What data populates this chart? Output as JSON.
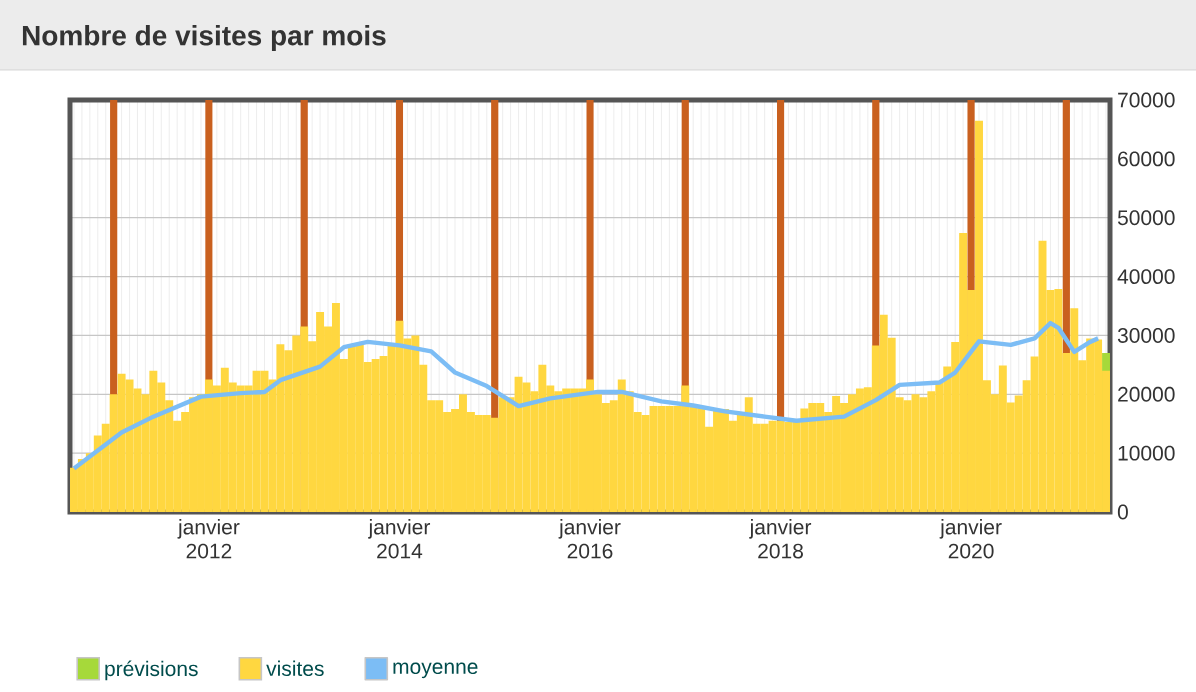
{
  "chart_data": {
    "type": "bar",
    "title": "Nombre de visites par mois",
    "x": [
      "2010-08",
      "2010-09",
      "2010-10",
      "2010-11",
      "2010-12",
      "2011-01",
      "2011-02",
      "2011-03",
      "2011-04",
      "2011-05",
      "2011-06",
      "2011-07",
      "2011-08",
      "2011-09",
      "2011-10",
      "2011-11",
      "2011-12",
      "2012-01",
      "2012-02",
      "2012-03",
      "2012-04",
      "2012-05",
      "2012-06",
      "2012-07",
      "2012-08",
      "2012-09",
      "2012-10",
      "2012-11",
      "2012-12",
      "2013-01",
      "2013-02",
      "2013-03",
      "2013-04",
      "2013-05",
      "2013-06",
      "2013-07",
      "2013-08",
      "2013-09",
      "2013-10",
      "2013-11",
      "2013-12",
      "2014-01",
      "2014-02",
      "2014-03",
      "2014-04",
      "2014-05",
      "2014-06",
      "2014-07",
      "2014-08",
      "2014-09",
      "2014-10",
      "2014-11",
      "2014-12",
      "2015-01",
      "2015-02",
      "2015-03",
      "2015-04",
      "2015-05",
      "2015-06",
      "2015-07",
      "2015-08",
      "2015-09",
      "2015-10",
      "2015-11",
      "2015-12",
      "2016-01",
      "2016-02",
      "2016-03",
      "2016-04",
      "2016-05",
      "2016-06",
      "2016-07",
      "2016-08",
      "2016-09",
      "2016-10",
      "2016-11",
      "2016-12",
      "2017-01",
      "2017-02",
      "2017-03",
      "2017-04",
      "2017-05",
      "2017-06",
      "2017-07",
      "2017-08",
      "2017-09",
      "2017-10",
      "2017-11",
      "2017-12",
      "2018-01",
      "2018-02",
      "2018-03",
      "2018-04",
      "2018-05",
      "2018-06",
      "2018-07",
      "2018-08",
      "2018-09",
      "2018-10",
      "2018-11",
      "2018-12",
      "2019-01",
      "2019-02",
      "2019-03",
      "2019-04",
      "2019-05",
      "2019-06",
      "2019-07",
      "2019-08",
      "2019-09",
      "2019-10",
      "2019-11",
      "2019-12",
      "2020-01",
      "2020-02",
      "2020-03",
      "2020-04",
      "2020-05",
      "2020-06",
      "2020-07",
      "2020-08",
      "2020-09",
      "2020-10",
      "2020-11",
      "2020-12",
      "2021-01",
      "2021-02",
      "2021-03",
      "2021-04",
      "2021-05",
      "2021-06"
    ],
    "series": [
      {
        "name": "prévisions",
        "color": "#a6d93a",
        "x": [
          "2021-06"
        ],
        "values": [
          27000
        ]
      },
      {
        "name": "visites",
        "color": "#ffd740",
        "values": [
          7500,
          9000,
          10000,
          13000,
          15000,
          20000,
          23500,
          22500,
          21000,
          20000,
          24000,
          22000,
          19000,
          15500,
          17000,
          19500,
          20000,
          22500,
          21500,
          24500,
          22000,
          21500,
          21500,
          24000,
          24000,
          22500,
          28500,
          27500,
          30000,
          31500,
          29000,
          34000,
          31500,
          35500,
          26000,
          28500,
          28500,
          25500,
          26000,
          26500,
          28500,
          32500,
          29500,
          30000,
          25000,
          19000,
          19000,
          17000,
          17500,
          20000,
          17000,
          16500,
          16500,
          16000,
          19500,
          19500,
          23000,
          22000,
          20500,
          25000,
          21500,
          20500,
          21000,
          21000,
          21000,
          22500,
          20000,
          18500,
          19000,
          22500,
          20500,
          17000,
          16500,
          18000,
          18000,
          18000,
          18000,
          21500,
          18000,
          18000,
          14500,
          17500,
          17500,
          15500,
          16500,
          19500,
          15000,
          15000,
          15500,
          15500,
          15300,
          15300,
          17600,
          18500,
          18500,
          17000,
          19700,
          18500,
          20000,
          21000,
          21200,
          28300,
          33500,
          29600,
          19500,
          19000,
          20000,
          19500,
          20500,
          22000,
          24700,
          28900,
          47400,
          37700,
          66500,
          22400,
          20000,
          24900,
          18600,
          19800,
          22400,
          26400,
          46100,
          37700,
          37900,
          27000,
          34600,
          25800,
          29500,
          29300,
          24000
        ]
      },
      {
        "name": "moyenne",
        "color": "#7cbdf5",
        "type": "line",
        "x": [
          "2010-08",
          "2011-02",
          "2011-06",
          "2011-12",
          "2012-05",
          "2012-08",
          "2012-10",
          "2013-03",
          "2013-06",
          "2013-09",
          "2014-01",
          "2014-05",
          "2014-08",
          "2014-12",
          "2015-04",
          "2015-08",
          "2016-02",
          "2016-05",
          "2016-10",
          "2017-02",
          "2017-06",
          "2017-11",
          "2018-03",
          "2018-09",
          "2019-01",
          "2019-04",
          "2019-09",
          "2019-11",
          "2020-02",
          "2020-06",
          "2020-09",
          "2020-11",
          "2020-12",
          "2021-02",
          "2021-04",
          "2021-05"
        ],
        "values": [
          7400,
          13500,
          16200,
          19600,
          20200,
          20400,
          22400,
          24700,
          28000,
          28900,
          28300,
          27300,
          23700,
          21400,
          18000,
          19300,
          20400,
          20400,
          18800,
          18100,
          17100,
          16200,
          15500,
          16200,
          19000,
          21600,
          22000,
          23700,
          29000,
          28400,
          29500,
          32100,
          31300,
          27200,
          28900,
          29500
        ]
      }
    ],
    "xlim": [
      "2010-07-16",
      "2021-06-16"
    ],
    "xticks": [
      {
        "value": "2012-01",
        "label": "janvier 2012"
      },
      {
        "value": "2014-01",
        "label": "janvier 2014"
      },
      {
        "value": "2016-01",
        "label": "janvier 2016"
      },
      {
        "value": "2018-01",
        "label": "janvier 2018"
      },
      {
        "value": "2020-01",
        "label": "janvier 2020"
      }
    ],
    "ylim": [
      0,
      70000
    ],
    "yticks": [
      0,
      10000,
      20000,
      30000,
      40000,
      50000,
      60000,
      70000
    ],
    "ref_lines": [
      {
        "axis": "x",
        "value": "2011-01",
        "color": "#c9601f"
      },
      {
        "axis": "x",
        "value": "2012-01",
        "color": "#c9601f"
      },
      {
        "axis": "x",
        "value": "2013-01",
        "color": "#c9601f"
      },
      {
        "axis": "x",
        "value": "2014-01",
        "color": "#c9601f"
      },
      {
        "axis": "x",
        "value": "2015-01",
        "color": "#c9601f"
      },
      {
        "axis": "x",
        "value": "2016-01",
        "color": "#c9601f"
      },
      {
        "axis": "x",
        "value": "2017-01",
        "color": "#c9601f"
      },
      {
        "axis": "x",
        "value": "2018-01",
        "color": "#c9601f"
      },
      {
        "axis": "x",
        "value": "2019-01",
        "color": "#c9601f"
      },
      {
        "axis": "x",
        "value": "2020-01",
        "color": "#c9601f"
      },
      {
        "axis": "x",
        "value": "2021-01",
        "color": "#c9601f"
      }
    ],
    "grid": true,
    "legend": "bottom left"
  }
}
